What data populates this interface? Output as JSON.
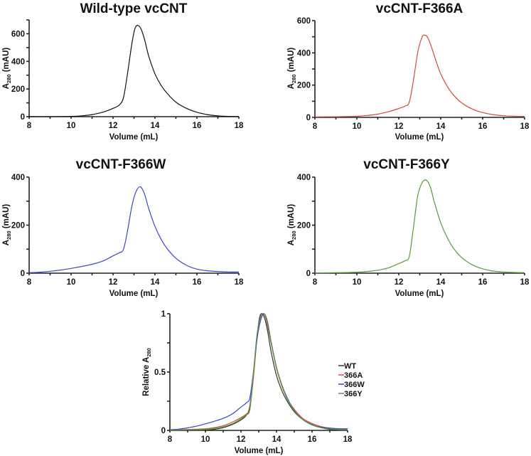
{
  "chart_data": [
    {
      "type": "line",
      "title": "Wild-type vcCNT",
      "xlabel": "Volume (mL)",
      "ylabel_main": "A",
      "ylabel_sub": "280",
      "ylabel_unit": " (mAU)",
      "xlim": [
        8,
        18
      ],
      "ylim": [
        0,
        700
      ],
      "xticks": [
        8,
        10,
        12,
        14,
        16,
        18
      ],
      "yticks": [
        0,
        200,
        400,
        600
      ],
      "grid": false,
      "series": [
        {
          "name": "Wild-type vcCNT",
          "color": "#111111",
          "x": [
            8,
            9,
            10,
            10.5,
            11,
            11.5,
            12,
            12.3,
            12.5,
            12.7,
            12.9,
            13.05,
            13.2,
            13.35,
            13.5,
            13.7,
            14,
            14.3,
            14.6,
            15,
            15.5,
            16,
            16.5,
            17,
            17.5,
            18
          ],
          "y": [
            0,
            0,
            2,
            6,
            15,
            32,
            60,
            85,
            140,
            320,
            530,
            640,
            660,
            630,
            560,
            440,
            310,
            225,
            165,
            105,
            60,
            32,
            15,
            6,
            2,
            1
          ]
        }
      ]
    },
    {
      "type": "line",
      "title": "vcCNT-F366A",
      "xlabel": "Volume (mL)",
      "ylabel_main": "A",
      "ylabel_sub": "280",
      "ylabel_unit": " (mAU)",
      "xlim": [
        8,
        18
      ],
      "ylim": [
        0,
        600
      ],
      "xticks": [
        8,
        10,
        12,
        14,
        16,
        18
      ],
      "yticks": [
        0,
        200,
        400,
        600
      ],
      "grid": false,
      "series": [
        {
          "name": "vcCNT-F366A",
          "color": "#d24a3c",
          "x": [
            8,
            9,
            10,
            10.5,
            11,
            11.5,
            12,
            12.3,
            12.5,
            12.7,
            12.9,
            13.1,
            13.25,
            13.4,
            13.6,
            13.8,
            14,
            14.3,
            14.6,
            15,
            15.5,
            16,
            16.5,
            17,
            17.5,
            18
          ],
          "y": [
            3,
            4,
            7,
            12,
            20,
            35,
            55,
            70,
            95,
            230,
            400,
            495,
            510,
            490,
            420,
            340,
            270,
            195,
            140,
            90,
            52,
            30,
            17,
            10,
            7,
            6
          ]
        }
      ]
    },
    {
      "type": "line",
      "title": "vcCNT-F366W",
      "xlabel": "Volume (mL)",
      "ylabel_main": "A",
      "ylabel_sub": "280",
      "ylabel_unit": " (mAU)",
      "xlim": [
        8,
        18
      ],
      "ylim": [
        0,
        400
      ],
      "xticks": [
        8,
        10,
        12,
        14,
        16,
        18
      ],
      "yticks": [
        0,
        200,
        400
      ],
      "grid": false,
      "series": [
        {
          "name": "vcCNT-F366W",
          "color": "#3b45cf",
          "x": [
            8,
            8.5,
            9,
            9.5,
            10,
            10.5,
            11,
            11.5,
            12,
            12.3,
            12.5,
            12.7,
            12.9,
            13.1,
            13.3,
            13.5,
            13.7,
            14,
            14.3,
            14.6,
            15,
            15.5,
            16,
            16.5,
            17,
            17.5,
            18
          ],
          "y": [
            2,
            4,
            8,
            13,
            20,
            28,
            37,
            50,
            72,
            85,
            100,
            180,
            280,
            340,
            360,
            330,
            270,
            195,
            140,
            100,
            62,
            33,
            17,
            10,
            7,
            5,
            5
          ]
        }
      ]
    },
    {
      "type": "line",
      "title": "vcCNT-F366Y",
      "xlabel": "Volume (mL)",
      "ylabel_main": "A",
      "ylabel_sub": "280",
      "ylabel_unit": " (mAU)",
      "xlim": [
        8,
        18
      ],
      "ylim": [
        0,
        400
      ],
      "xticks": [
        8,
        10,
        12,
        14,
        16,
        18
      ],
      "yticks": [
        0,
        200,
        400
      ],
      "grid": false,
      "series": [
        {
          "name": "vcCNT-F366Y",
          "color": "#5a9a3a",
          "x": [
            8,
            9,
            10,
            10.5,
            11,
            11.5,
            12,
            12.3,
            12.5,
            12.7,
            12.9,
            13.1,
            13.3,
            13.5,
            13.7,
            14,
            14.3,
            14.6,
            15,
            15.5,
            16,
            16.5,
            17,
            17.5,
            18
          ],
          "y": [
            1,
            2,
            4,
            7,
            12,
            22,
            40,
            52,
            70,
            190,
            320,
            375,
            388,
            360,
            295,
            210,
            150,
            105,
            65,
            35,
            18,
            9,
            5,
            3,
            2
          ]
        }
      ]
    },
    {
      "type": "line",
      "title": "",
      "xlabel": "Volume (mL)",
      "ylabel_main": "Relative A",
      "ylabel_sub": "280",
      "ylabel_unit": "",
      "xlim": [
        8,
        18
      ],
      "ylim": [
        0,
        1
      ],
      "xticks": [
        8,
        10,
        12,
        14,
        16,
        18
      ],
      "yticks": [
        0,
        0.5,
        1
      ],
      "ytick_labels": [
        "0",
        "0.5",
        "1"
      ],
      "grid": false,
      "legend": "right",
      "series": [
        {
          "name": "WT",
          "color": "#333333",
          "x": [
            8,
            9,
            10,
            10.5,
            11,
            11.5,
            12,
            12.3,
            12.5,
            12.7,
            12.9,
            13.05,
            13.2,
            13.35,
            13.5,
            13.7,
            14,
            14.3,
            14.6,
            15,
            15.5,
            16,
            16.5,
            17,
            17.5,
            18
          ],
          "y": [
            0,
            0,
            0.003,
            0.009,
            0.023,
            0.05,
            0.09,
            0.13,
            0.21,
            0.48,
            0.8,
            0.97,
            1.0,
            0.95,
            0.85,
            0.67,
            0.47,
            0.34,
            0.25,
            0.16,
            0.09,
            0.05,
            0.023,
            0.009,
            0.003,
            0.002
          ]
        },
        {
          "name": "366A",
          "color": "#d24a3c",
          "x": [
            8,
            9,
            10,
            10.5,
            11,
            11.5,
            12,
            12.3,
            12.5,
            12.7,
            12.9,
            13.1,
            13.25,
            13.4,
            13.6,
            13.8,
            14,
            14.3,
            14.6,
            15,
            15.5,
            16,
            16.5,
            17,
            17.5,
            18
          ],
          "y": [
            0.006,
            0.008,
            0.014,
            0.024,
            0.04,
            0.07,
            0.11,
            0.14,
            0.19,
            0.45,
            0.78,
            0.97,
            1.0,
            0.96,
            0.82,
            0.67,
            0.53,
            0.38,
            0.27,
            0.18,
            0.1,
            0.06,
            0.033,
            0.02,
            0.014,
            0.012
          ]
        },
        {
          "name": "366W",
          "color": "#3b45cf",
          "x": [
            8,
            8.5,
            9,
            9.5,
            10,
            10.5,
            11,
            11.5,
            12,
            12.3,
            12.5,
            12.7,
            12.9,
            13.1,
            13.3,
            13.5,
            13.7,
            14,
            14.3,
            14.6,
            15,
            15.5,
            16,
            16.5,
            17,
            17.5,
            18
          ],
          "y": [
            0.006,
            0.011,
            0.022,
            0.036,
            0.056,
            0.078,
            0.103,
            0.14,
            0.2,
            0.236,
            0.28,
            0.5,
            0.78,
            0.94,
            1.0,
            0.92,
            0.75,
            0.54,
            0.39,
            0.28,
            0.17,
            0.09,
            0.047,
            0.028,
            0.019,
            0.014,
            0.014
          ]
        },
        {
          "name": "366Y",
          "color": "#5a9a3a",
          "x": [
            8,
            9,
            10,
            10.5,
            11,
            11.5,
            12,
            12.3,
            12.5,
            12.7,
            12.9,
            13.1,
            13.3,
            13.5,
            13.7,
            14,
            14.3,
            14.6,
            15,
            15.5,
            16,
            16.5,
            17,
            17.5,
            18
          ],
          "y": [
            0.003,
            0.005,
            0.01,
            0.018,
            0.031,
            0.057,
            0.1,
            0.134,
            0.18,
            0.49,
            0.82,
            0.97,
            1.0,
            0.93,
            0.76,
            0.54,
            0.39,
            0.27,
            0.17,
            0.09,
            0.046,
            0.023,
            0.013,
            0.008,
            0.005
          ]
        }
      ]
    }
  ]
}
